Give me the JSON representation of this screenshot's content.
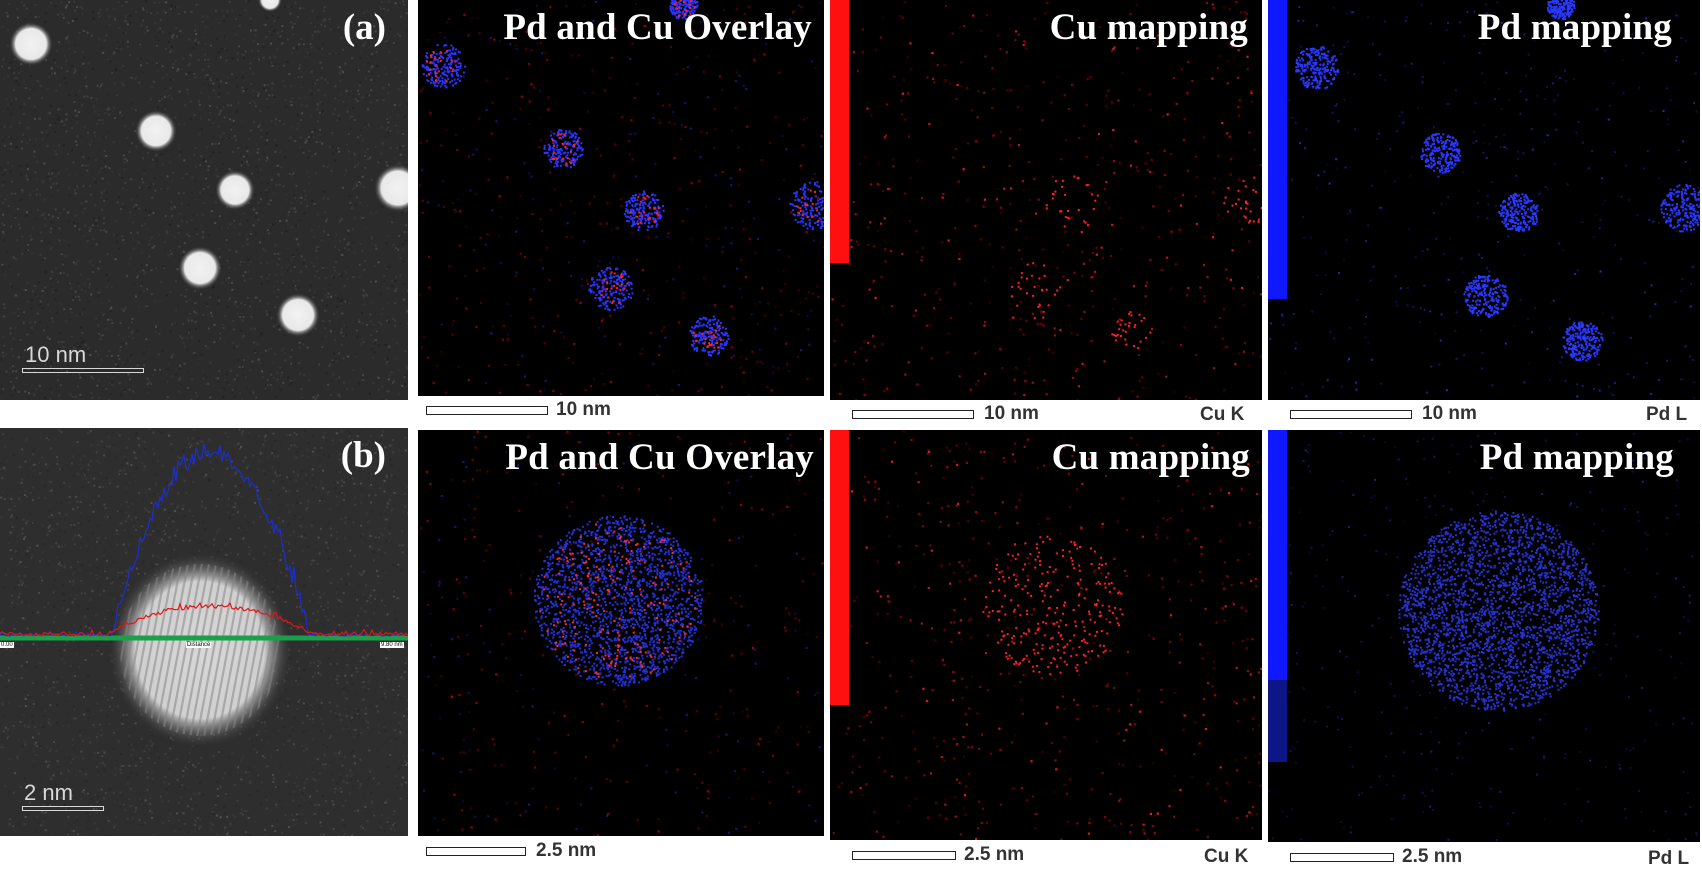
{
  "rows": [
    {
      "label": "(a)",
      "haadf_scale": "10 nm",
      "overlay_title": "Pd and Cu Overlay",
      "cu_title": "Cu mapping",
      "pd_title": "Pd mapping",
      "overlay_scale": "10 nm",
      "cu_scale": "10 nm",
      "pd_scale": "10 nm",
      "cu_element": "Cu K",
      "pd_element": "Pd L"
    },
    {
      "label": "(b)",
      "haadf_scale": "2 nm",
      "overlay_title": "Pd and Cu Overlay",
      "cu_title": "Cu mapping",
      "pd_title": "Pd mapping",
      "overlay_scale": "2.5 nm",
      "cu_scale": "2.5 nm",
      "pd_scale": "2.5 nm",
      "cu_element": "Cu K",
      "pd_element": "Pd L",
      "line_profile": {
        "start_label": "0.00",
        "axis_label": "Distance",
        "end_label": "9.80 nm",
        "series": [
          {
            "color": "#1c2fd0"
          },
          {
            "color": "#e01616"
          }
        ]
      }
    }
  ],
  "colors": {
    "cu": "#ff1a1a",
    "pd": "#1a2cff",
    "line_profile_axis": "#1aa04a"
  }
}
